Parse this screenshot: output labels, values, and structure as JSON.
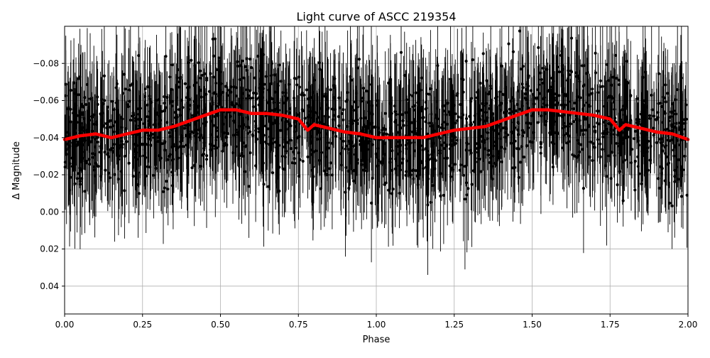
{
  "chart_data": {
    "type": "scatter",
    "title": "Light curve of ASCC 219354",
    "xlabel": "Phase",
    "ylabel": "Δ Magnitude",
    "xlim": [
      0.0,
      2.0
    ],
    "ylim": [
      0.055,
      -0.1
    ],
    "y_inverted": true,
    "grid": true,
    "x_ticks": [
      "0.00",
      "0.25",
      "0.50",
      "0.75",
      "1.00",
      "1.25",
      "1.50",
      "1.75",
      "2.00"
    ],
    "y_ticks": [
      "−0.08",
      "−0.06",
      "−0.04",
      "−0.02",
      "0.00",
      "0.02",
      "0.04"
    ],
    "colors": {
      "points": "#000000",
      "binned": "#ff0000",
      "grid": "#b0b0b0"
    },
    "series": [
      {
        "style": "points-with-errorbars",
        "description_values": "dense black photometric points; scatter spans roughly −0.10 to +0.055 in Δ magnitude across all phases"
      },
      {
        "style": "line",
        "x": [
          0.0,
          0.05,
          0.1,
          0.15,
          0.2,
          0.25,
          0.3,
          0.35,
          0.4,
          0.45,
          0.5,
          0.55,
          0.6,
          0.65,
          0.7,
          0.75,
          0.78,
          0.8,
          0.85,
          0.9,
          0.95,
          1.0,
          1.05,
          1.1,
          1.15,
          1.2,
          1.25,
          1.3,
          1.35,
          1.4,
          1.45,
          1.5,
          1.55,
          1.6,
          1.65,
          1.7,
          1.75,
          1.78,
          1.8,
          1.85,
          1.9,
          1.95,
          2.0
        ],
        "y": [
          -0.039,
          -0.041,
          -0.042,
          -0.04,
          -0.042,
          -0.044,
          -0.044,
          -0.046,
          -0.049,
          -0.052,
          -0.055,
          -0.055,
          -0.053,
          -0.053,
          -0.052,
          -0.05,
          -0.044,
          -0.047,
          -0.045,
          -0.043,
          -0.042,
          -0.04,
          -0.04,
          -0.04,
          -0.04,
          -0.042,
          -0.044,
          -0.045,
          -0.046,
          -0.049,
          -0.052,
          -0.055,
          -0.055,
          -0.054,
          -0.053,
          -0.052,
          -0.05,
          -0.044,
          -0.047,
          -0.045,
          -0.043,
          -0.042,
          -0.039
        ]
      }
    ]
  }
}
